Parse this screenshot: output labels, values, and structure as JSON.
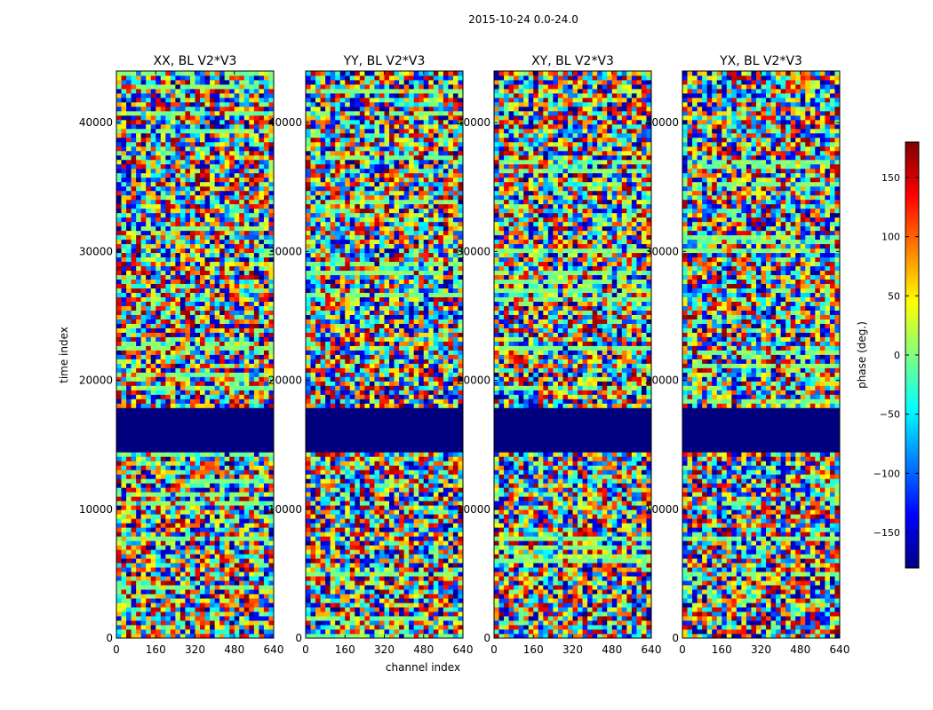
{
  "figure": {
    "suptitle": "2015-10-24 0.0-24.0"
  },
  "chart_data": {
    "type": "heatmap",
    "suptitle": "2015-10-24 0.0-24.0",
    "xlabel": "channel index",
    "ylabel": "time index",
    "xlim": [
      0,
      640
    ],
    "ylim": [
      0,
      44000
    ],
    "xticks": [
      0,
      160,
      320,
      480,
      640
    ],
    "yticks": [
      0,
      10000,
      20000,
      30000,
      40000
    ],
    "colormap": "jet",
    "colorbar": {
      "label": "phase (deg.)",
      "range": [
        -180,
        180
      ],
      "ticks": [
        -150,
        -100,
        -50,
        0,
        50,
        100,
        150
      ]
    },
    "panels": [
      {
        "title": "XX, BL V2*V3"
      },
      {
        "title": "YY, BL V2*V3"
      },
      {
        "title": "XY, BL V2*V3"
      },
      {
        "title": "YX, BL V2*V3"
      }
    ],
    "masked_time_range": [
      14500,
      18000
    ],
    "masked_value": -180
  },
  "colors": {
    "masked": "#00007f",
    "line": "#000000"
  }
}
